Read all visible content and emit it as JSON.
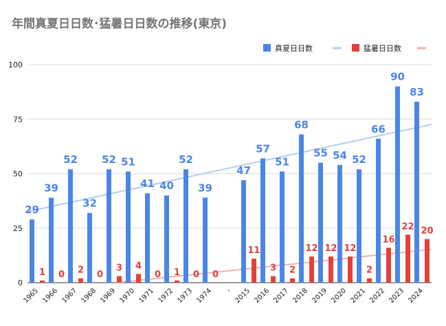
{
  "chart_data": {
    "type": "bar",
    "title": "年間真夏日日数･猛暑日日数の推移(東京)",
    "xlabel": "",
    "ylabel": "",
    "ylim": [
      0,
      100
    ],
    "yticks": [
      0,
      25,
      50,
      75,
      100
    ],
    "grid": true,
    "legend_position": "top-right",
    "categories": [
      "1965",
      "1966",
      "1967",
      "1968",
      "1969",
      "1970",
      "1971",
      "1972",
      "1973",
      "1974",
      "-",
      "2015",
      "2016",
      "2017",
      "2018",
      "2019",
      "2020",
      "2021",
      "2022",
      "2023",
      "2024"
    ],
    "series": [
      {
        "name": "真夏日日数",
        "color": "#4a86e8",
        "trend_color": "#b3cdf2",
        "values": [
          29,
          39,
          52,
          32,
          52,
          51,
          41,
          40,
          52,
          39,
          null,
          47,
          57,
          51,
          68,
          55,
          54,
          52,
          66,
          90,
          83
        ],
        "trendline": [
          32.6,
          72.6
        ]
      },
      {
        "name": "猛暑日日数",
        "color": "#e2413a",
        "trend_color": "#f3b0ab",
        "values": [
          1,
          0,
          2,
          0,
          3,
          4,
          0,
          1,
          0,
          0,
          null,
          11,
          3,
          2,
          12,
          12,
          12,
          2,
          16,
          22,
          20
        ],
        "trendline": [
          -4.3,
          15.3
        ]
      }
    ]
  }
}
